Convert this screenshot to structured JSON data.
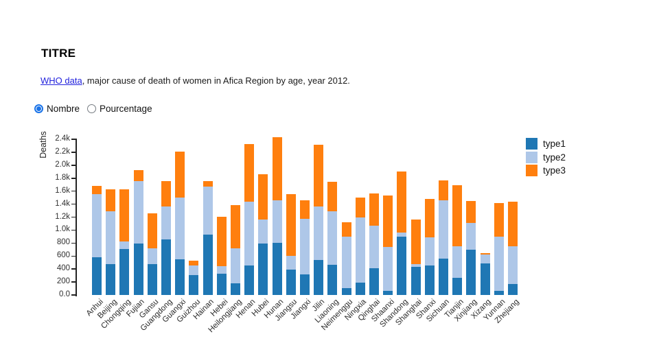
{
  "header": {
    "title": "TITRE"
  },
  "subtitle": {
    "link_text": "WHO data",
    "rest": ", major cause of death of women in Afica Region by age, year 2012."
  },
  "controls": {
    "options": [
      {
        "label": "Nombre",
        "selected": true
      },
      {
        "label": "Pourcentage",
        "selected": false
      }
    ]
  },
  "chart_data": {
    "type": "bar",
    "stacked": true,
    "title": "",
    "xlabel": "",
    "ylabel": "Deaths",
    "ylim": [
      0,
      2400
    ],
    "grid": false,
    "legend_position": "right",
    "ytick_values": [
      0,
      200,
      400,
      600,
      800,
      1000,
      1200,
      1400,
      1600,
      1800,
      2000,
      2200,
      2400
    ],
    "ytick_labels": [
      "0.0",
      "200",
      "400",
      "600",
      "800",
      "1.0k",
      "1.2k",
      "1.4k",
      "1.6k",
      "1.8k",
      "2.0k",
      "2.2k",
      "2.4k"
    ],
    "categories": [
      "Anhui",
      "Beijing",
      "Chongqing",
      "Fujian",
      "Gansu",
      "Guangdong",
      "Guangxi",
      "Guizhou",
      "Hainan",
      "Hebei",
      "Heilongjiang",
      "Henan",
      "Hubei",
      "Hunan",
      "Jiangsu",
      "Jiangxi",
      "Jilin",
      "Liaoning",
      "Neimenggu",
      "Ningxia",
      "Qinghai",
      "Shaanxi",
      "Shandong",
      "Shanghai",
      "Shanxi",
      "Sichuan",
      "Tianjin",
      "Xinjiang",
      "Xizang",
      "Yunnan",
      "Zhejiang"
    ],
    "series": [
      {
        "name": "type1",
        "color": "#1f77b4",
        "values": [
          580,
          480,
          710,
          790,
          480,
          860,
          550,
          310,
          930,
          330,
          180,
          450,
          790,
          800,
          390,
          320,
          540,
          460,
          110,
          190,
          410,
          60,
          900,
          430,
          450,
          560,
          260,
          700,
          490,
          60,
          170
        ]
      },
      {
        "name": "type2",
        "color": "#aec7e8",
        "values": [
          970,
          810,
          110,
          960,
          240,
          500,
          950,
          140,
          740,
          110,
          540,
          990,
          370,
          660,
          210,
          850,
          820,
          830,
          790,
          1000,
          660,
          680,
          60,
          50,
          440,
          900,
          490,
          410,
          130,
          840,
          580
        ]
      },
      {
        "name": "type3",
        "color": "#ff7f0e",
        "values": [
          130,
          340,
          810,
          170,
          540,
          400,
          710,
          80,
          90,
          770,
          670,
          890,
          700,
          970,
          950,
          290,
          960,
          450,
          220,
          310,
          490,
          790,
          940,
          680,
          590,
          310,
          940,
          340,
          30,
          520,
          690
        ]
      }
    ]
  }
}
